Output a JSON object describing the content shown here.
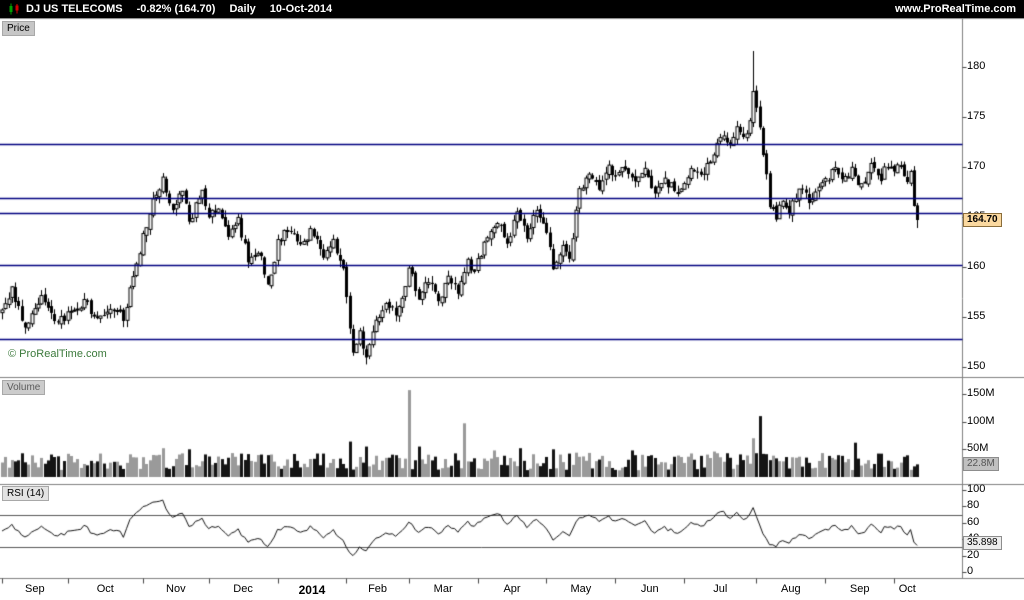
{
  "header": {
    "symbol": "DJ US TELECOMS",
    "change": "-0.82% (164.70)",
    "timeframe": "Daily",
    "date": "10-Oct-2014",
    "site": "www.ProRealTime.com"
  },
  "price_panel": {
    "label": "Price",
    "copyright": "© ProRealTime.com",
    "last_price": "164.70"
  },
  "volume_panel": {
    "label": "Volume",
    "last_volume": "22.8M"
  },
  "rsi_panel": {
    "label": "RSI (14)",
    "last_rsi": "35.898"
  },
  "colors": {
    "header_bg": "#000000",
    "header_text": "#ffffff",
    "level_line": "#00007f",
    "candle": "#000000",
    "volume_up": "#9a9a9a",
    "volume_down": "#141414",
    "rsi_line": "#141414",
    "rsi_level": "#555555",
    "separator": "#808080",
    "copyright_text": "#3c7a3c",
    "price_badge_bg": "#fbd9a0",
    "volume_badge_bg": "#c0c0c0",
    "rsi_badge_bg": "#ededed"
  },
  "chart_data": [
    {
      "type": "candlestick",
      "title": "DJ US TELECOMS Daily",
      "ylabel": "Price",
      "total_days": 280,
      "ylim": [
        149.5,
        183.5
      ],
      "y_ticks": [
        180,
        175,
        170,
        165,
        160,
        155,
        150
      ],
      "levels": [
        172.3,
        166.9,
        165.4,
        160.2,
        152.8
      ],
      "last_price": 164.7,
      "prev_close": 166.1,
      "anchors": [
        [
          0,
          155.5
        ],
        [
          3,
          157.8
        ],
        [
          7,
          153.9
        ],
        [
          12,
          156.8
        ],
        [
          17,
          154.6
        ],
        [
          20,
          155.2
        ],
        [
          25,
          156.6
        ],
        [
          29,
          154.8
        ],
        [
          33,
          156.2
        ],
        [
          37,
          155.0
        ],
        [
          40,
          158.8
        ],
        [
          43,
          163.2
        ],
        [
          46,
          166.5
        ],
        [
          49,
          168.8
        ],
        [
          52,
          165.5
        ],
        [
          55,
          167.6
        ],
        [
          57,
          164.2
        ],
        [
          59,
          166.3
        ],
        [
          61,
          167.4
        ],
        [
          63,
          165.2
        ],
        [
          66,
          166.2
        ],
        [
          69,
          163.4
        ],
        [
          72,
          164.6
        ],
        [
          75,
          160.6
        ],
        [
          78,
          161.8
        ],
        [
          81,
          158.4
        ],
        [
          83,
          160.2
        ],
        [
          84,
          162.4
        ],
        [
          87,
          163.8
        ],
        [
          91,
          162.0
        ],
        [
          94,
          163.6
        ],
        [
          98,
          161.2
        ],
        [
          101,
          162.4
        ],
        [
          104,
          160.0
        ],
        [
          105,
          156.8
        ],
        [
          107,
          151.6
        ],
        [
          109,
          153.6
        ],
        [
          111,
          150.9
        ],
        [
          114,
          154.4
        ],
        [
          117,
          156.4
        ],
        [
          120,
          155.2
        ],
        [
          123,
          158.2
        ],
        [
          124,
          160.2
        ],
        [
          127,
          156.6
        ],
        [
          130,
          158.8
        ],
        [
          133,
          156.3
        ],
        [
          136,
          159.4
        ],
        [
          139,
          157.6
        ],
        [
          142,
          160.6
        ],
        [
          144,
          159.2
        ],
        [
          145,
          160.4
        ],
        [
          148,
          163.0
        ],
        [
          151,
          164.8
        ],
        [
          154,
          162.6
        ],
        [
          157,
          165.2
        ],
        [
          160,
          163.2
        ],
        [
          163,
          166.0
        ],
        [
          165,
          164.6
        ],
        [
          166,
          163.4
        ],
        [
          168,
          159.9
        ],
        [
          171,
          162.4
        ],
        [
          173,
          161.2
        ],
        [
          176,
          167.4
        ],
        [
          179,
          169.2
        ],
        [
          182,
          167.9
        ],
        [
          185,
          170.2
        ],
        [
          187,
          169.0
        ],
        [
          190,
          170.1
        ],
        [
          193,
          168.4
        ],
        [
          196,
          169.6
        ],
        [
          199,
          167.6
        ],
        [
          202,
          168.8
        ],
        [
          206,
          167.2
        ],
        [
          208,
          168.4
        ],
        [
          211,
          170.0
        ],
        [
          214,
          169.2
        ],
        [
          217,
          171.4
        ],
        [
          220,
          173.2
        ],
        [
          222,
          172.2
        ],
        [
          224,
          174.3
        ],
        [
          226,
          172.8
        ],
        [
          228,
          174.5
        ],
        [
          229,
          177.5
        ],
        [
          230,
          175.8
        ],
        [
          232,
          171.5
        ],
        [
          234,
          166.2
        ],
        [
          236,
          164.9
        ],
        [
          238,
          167.0
        ],
        [
          240,
          165.6
        ],
        [
          243,
          167.8
        ],
        [
          246,
          166.6
        ],
        [
          249,
          168.0
        ],
        [
          251,
          168.6
        ],
        [
          254,
          170.0
        ],
        [
          256,
          168.4
        ],
        [
          259,
          169.6
        ],
        [
          262,
          167.9
        ],
        [
          265,
          170.4
        ],
        [
          268,
          169.0
        ],
        [
          270,
          170.2
        ],
        [
          272,
          169.9
        ],
        [
          274,
          170.3
        ],
        [
          276,
          168.5
        ],
        [
          277,
          169.3
        ],
        [
          278,
          166.1
        ],
        [
          279,
          164.7
        ]
      ],
      "wick_highs": [
        [
          229,
          181.6
        ],
        [
          230,
          178.0
        ]
      ],
      "wick_lows": [
        [
          111,
          150.4
        ],
        [
          279,
          163.9
        ]
      ],
      "months": [
        {
          "label": "Sep",
          "start": 0
        },
        {
          "label": "Oct",
          "start": 20
        },
        {
          "label": "Nov",
          "start": 43
        },
        {
          "label": "Dec",
          "start": 63
        },
        {
          "label": "2014",
          "start": 84,
          "bold": true
        },
        {
          "label": "Feb",
          "start": 105
        },
        {
          "label": "Mar",
          "start": 124
        },
        {
          "label": "Apr",
          "start": 145
        },
        {
          "label": "May",
          "start": 166
        },
        {
          "label": "Jun",
          "start": 187
        },
        {
          "label": "Jul",
          "start": 208
        },
        {
          "label": "Aug",
          "start": 230
        },
        {
          "label": "Sep",
          "start": 251
        },
        {
          "label": "Oct",
          "start": 272
        }
      ]
    },
    {
      "type": "bar",
      "name": "Volume",
      "ylim_millions": [
        0,
        160
      ],
      "y_ticks": [
        {
          "label": "150M",
          "value": 150
        },
        {
          "label": "100M",
          "value": 100
        },
        {
          "label": "50M",
          "value": 50
        }
      ],
      "base_range_millions": [
        12,
        44
      ],
      "spikes": [
        [
          49,
          52
        ],
        [
          57,
          50
        ],
        [
          106,
          64
        ],
        [
          111,
          55
        ],
        [
          124,
          157
        ],
        [
          127,
          55
        ],
        [
          141,
          97
        ],
        [
          150,
          48
        ],
        [
          158,
          52
        ],
        [
          168,
          50
        ],
        [
          192,
          48
        ],
        [
          217,
          46
        ],
        [
          229,
          70
        ],
        [
          231,
          110
        ],
        [
          260,
          62
        ]
      ],
      "last_value_millions": 22.8
    },
    {
      "type": "line",
      "name": "RSI (14)",
      "period": 14,
      "ylim": [
        0,
        100
      ],
      "y_ticks": [
        100,
        80,
        60,
        40,
        20,
        0
      ],
      "levels": [
        70,
        30
      ],
      "last_value": 35.898
    }
  ]
}
